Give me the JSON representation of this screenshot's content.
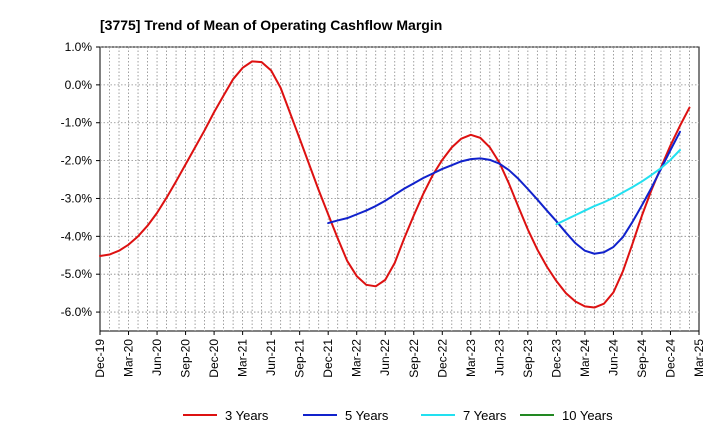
{
  "chart_data": {
    "type": "line",
    "title": "[3775]  Trend of Mean of Operating Cashflow Margin",
    "xlabel": "",
    "ylabel": "",
    "ylim": [
      -6.5,
      1.0
    ],
    "y_ticks": [
      1.0,
      0.0,
      -1.0,
      -2.0,
      -3.0,
      -4.0,
      -5.0,
      -6.0
    ],
    "y_tick_labels": [
      "1.0%",
      "0.0%",
      "-1.0%",
      "-2.0%",
      "-3.0%",
      "-4.0%",
      "-5.0%",
      "-6.0%"
    ],
    "x_tick_labels": [
      "Dec-19",
      "Mar-20",
      "Jun-20",
      "Sep-20",
      "Dec-20",
      "Mar-21",
      "Jun-21",
      "Sep-21",
      "Dec-21",
      "Mar-22",
      "Jun-22",
      "Sep-22",
      "Dec-22",
      "Mar-23",
      "Jun-23",
      "Sep-23",
      "Dec-23",
      "Mar-24",
      "Jun-24",
      "Sep-24",
      "Dec-24",
      "Mar-25"
    ],
    "x_unit": "month index from Dec-19",
    "xlim": [
      0,
      63
    ],
    "grid": true,
    "legend_position": "bottom",
    "series": [
      {
        "name": "3 Years",
        "color": "#dd1111",
        "points": [
          [
            0,
            -4.52
          ],
          [
            1,
            -4.48
          ],
          [
            2,
            -4.38
          ],
          [
            3,
            -4.22
          ],
          [
            4,
            -4.0
          ],
          [
            5,
            -3.72
          ],
          [
            6,
            -3.38
          ],
          [
            7,
            -2.98
          ],
          [
            8,
            -2.55
          ],
          [
            9,
            -2.1
          ],
          [
            10,
            -1.65
          ],
          [
            11,
            -1.2
          ],
          [
            12,
            -0.72
          ],
          [
            13,
            -0.28
          ],
          [
            14,
            0.15
          ],
          [
            15,
            0.45
          ],
          [
            16,
            0.62
          ],
          [
            17,
            0.6
          ],
          [
            18,
            0.38
          ],
          [
            19,
            -0.08
          ],
          [
            20,
            -0.75
          ],
          [
            21,
            -1.42
          ],
          [
            22,
            -2.1
          ],
          [
            23,
            -2.78
          ],
          [
            24,
            -3.42
          ],
          [
            25,
            -4.05
          ],
          [
            26,
            -4.65
          ],
          [
            27,
            -5.05
          ],
          [
            28,
            -5.28
          ],
          [
            29,
            -5.32
          ],
          [
            30,
            -5.15
          ],
          [
            31,
            -4.7
          ],
          [
            32,
            -4.05
          ],
          [
            33,
            -3.45
          ],
          [
            34,
            -2.88
          ],
          [
            35,
            -2.38
          ],
          [
            36,
            -1.98
          ],
          [
            37,
            -1.65
          ],
          [
            38,
            -1.42
          ],
          [
            39,
            -1.32
          ],
          [
            40,
            -1.4
          ],
          [
            41,
            -1.65
          ],
          [
            42,
            -2.05
          ],
          [
            43,
            -2.6
          ],
          [
            44,
            -3.22
          ],
          [
            45,
            -3.82
          ],
          [
            46,
            -4.35
          ],
          [
            47,
            -4.8
          ],
          [
            48,
            -5.18
          ],
          [
            49,
            -5.5
          ],
          [
            50,
            -5.72
          ],
          [
            51,
            -5.85
          ],
          [
            52,
            -5.88
          ],
          [
            53,
            -5.78
          ],
          [
            54,
            -5.48
          ],
          [
            55,
            -4.92
          ],
          [
            56,
            -4.2
          ],
          [
            57,
            -3.45
          ],
          [
            58,
            -2.78
          ],
          [
            59,
            -2.18
          ],
          [
            60,
            -1.6
          ],
          [
            61,
            -1.08
          ],
          [
            62,
            -0.6
          ]
        ]
      },
      {
        "name": "5 Years",
        "color": "#1122cc",
        "points": [
          [
            24,
            -3.65
          ],
          [
            25,
            -3.58
          ],
          [
            26,
            -3.52
          ],
          [
            27,
            -3.42
          ],
          [
            28,
            -3.32
          ],
          [
            29,
            -3.2
          ],
          [
            30,
            -3.06
          ],
          [
            31,
            -2.9
          ],
          [
            32,
            -2.74
          ],
          [
            33,
            -2.6
          ],
          [
            34,
            -2.46
          ],
          [
            35,
            -2.34
          ],
          [
            36,
            -2.22
          ],
          [
            37,
            -2.12
          ],
          [
            38,
            -2.02
          ],
          [
            39,
            -1.96
          ],
          [
            40,
            -1.94
          ],
          [
            41,
            -1.98
          ],
          [
            42,
            -2.08
          ],
          [
            43,
            -2.25
          ],
          [
            44,
            -2.48
          ],
          [
            45,
            -2.75
          ],
          [
            46,
            -3.03
          ],
          [
            47,
            -3.32
          ],
          [
            48,
            -3.6
          ],
          [
            49,
            -3.9
          ],
          [
            50,
            -4.18
          ],
          [
            51,
            -4.38
          ],
          [
            52,
            -4.46
          ],
          [
            53,
            -4.42
          ],
          [
            54,
            -4.28
          ],
          [
            55,
            -4.02
          ],
          [
            56,
            -3.62
          ],
          [
            57,
            -3.18
          ],
          [
            58,
            -2.72
          ],
          [
            59,
            -2.22
          ],
          [
            60,
            -1.72
          ],
          [
            61,
            -1.24
          ]
        ]
      },
      {
        "name": "7 Years",
        "color": "#22e0f0",
        "points": [
          [
            48,
            -3.68
          ],
          [
            49,
            -3.56
          ],
          [
            50,
            -3.44
          ],
          [
            51,
            -3.32
          ],
          [
            52,
            -3.2
          ],
          [
            53,
            -3.1
          ],
          [
            54,
            -2.98
          ],
          [
            55,
            -2.84
          ],
          [
            56,
            -2.7
          ],
          [
            57,
            -2.55
          ],
          [
            58,
            -2.38
          ],
          [
            59,
            -2.2
          ],
          [
            60,
            -1.98
          ],
          [
            61,
            -1.72
          ]
        ]
      },
      {
        "name": "10 Years",
        "color": "#228822",
        "points": []
      }
    ]
  }
}
